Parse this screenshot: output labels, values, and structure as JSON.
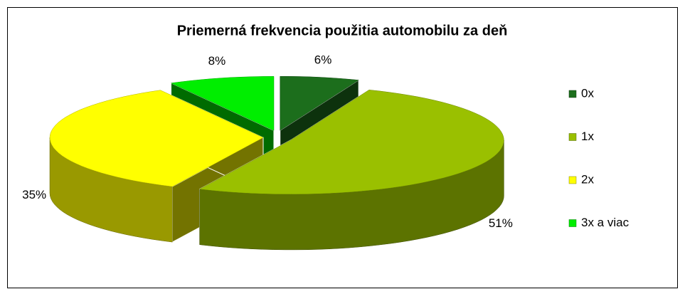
{
  "chart_data": {
    "type": "pie",
    "title": "Priemerná frekvencia použitia automobilu za deň",
    "categories": [
      "0x",
      "1x",
      "2x",
      "3x a viac"
    ],
    "values": [
      6,
      51,
      35,
      8
    ],
    "value_labels": [
      "6%",
      "51%",
      "35%",
      "8%"
    ],
    "colors": [
      "#1c6e1c",
      "#9ac000",
      "#ffff00",
      "#00ee00"
    ],
    "legend": "right",
    "exploded": true
  }
}
